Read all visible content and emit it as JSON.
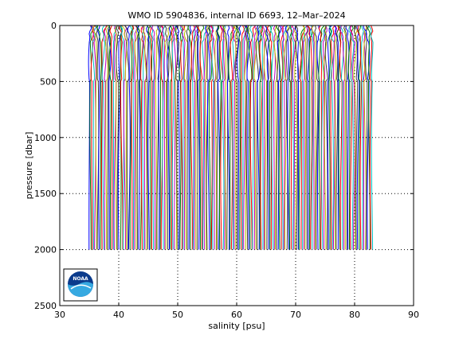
{
  "chart_data": {
    "type": "line",
    "title": "WMO ID 5904836, internal ID 6693, 12–Mar–2024",
    "xlabel": "salinity [psu]",
    "ylabel": "pressure [dbar]",
    "xlim": [
      30,
      90
    ],
    "ylim": [
      0,
      2500
    ],
    "y_reversed": true,
    "xticks": [
      30,
      40,
      50,
      60,
      70,
      80,
      90
    ],
    "yticks": [
      0,
      500,
      1000,
      1500,
      2000,
      2500
    ],
    "grid": true,
    "legend": "none",
    "series_style": "stacked profiles, each offset from the previous along the salinity axis",
    "profile_count": 200,
    "first_profile_offset": 35,
    "last_profile_offset": 83,
    "max_pressure": 2000,
    "colors": [
      "#0000ff",
      "#008000",
      "#ff0000",
      "#00bfbf",
      "#bf00bf",
      "#bfbf00",
      "#404040"
    ]
  },
  "logo": {
    "name": "NOAA",
    "text": "NOAA"
  }
}
